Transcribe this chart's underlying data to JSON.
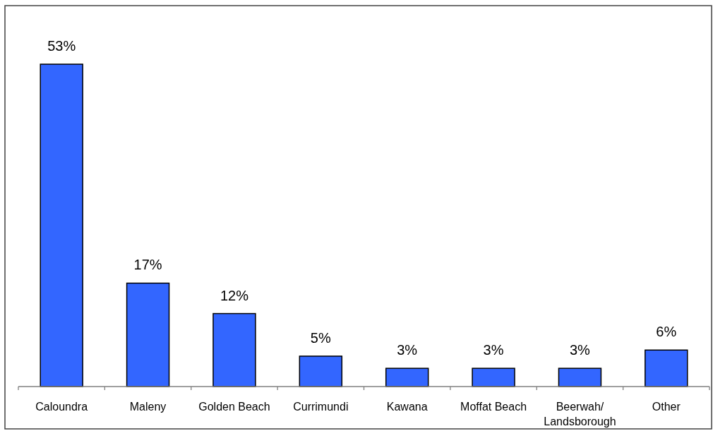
{
  "chart_data": {
    "type": "bar",
    "categories": [
      "Caloundra",
      "Maleny",
      "Golden Beach",
      "Currimundi",
      "Kawana",
      "Moffat Beach",
      "Beerwah/ Landsborough",
      "Other"
    ],
    "values": [
      53,
      17,
      12,
      5,
      3,
      3,
      3,
      6
    ],
    "value_labels": [
      "53%",
      "17%",
      "12%",
      "5%",
      "3%",
      "3%",
      "3%",
      "6%"
    ],
    "color": "#3366ff"
  }
}
